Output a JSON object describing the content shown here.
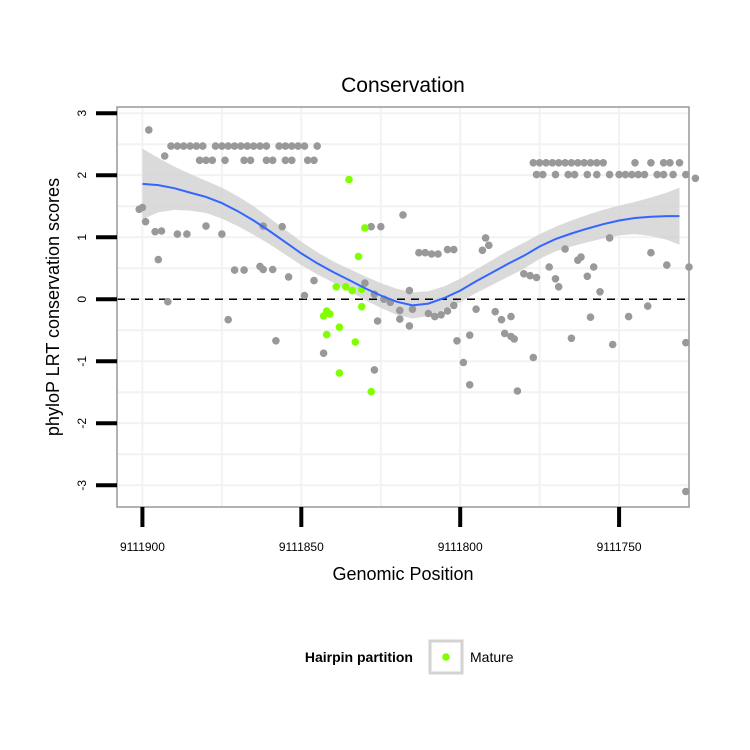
{
  "chart_data": {
    "type": "scatter",
    "title": "Conservation",
    "xlabel": "Genomic Position",
    "ylabel": "phyloP LRT conservation scores",
    "x_reversed": true,
    "xlim": [
      9111908,
      9111728
    ],
    "ylim": [
      -3.35,
      3.1
    ],
    "x_ticks": [
      "9111900",
      "9111850",
      "9111800",
      "9111750"
    ],
    "y_ticks": [
      "3",
      "2",
      "1",
      "0",
      "-1",
      "-2",
      "-3"
    ],
    "reference_line": {
      "y": 0,
      "style": "dashed"
    },
    "grid": true,
    "colors": {
      "other": "#999999",
      "mature": "#7fff00",
      "smooth": "#3366ff",
      "ribbon": "#d3d3d3",
      "panel": "#ffffff",
      "grid": "#f2f2f2",
      "frame": "#999999"
    },
    "legend": {
      "title": "Hairpin partition",
      "position": "bottom",
      "entries": [
        "Mature"
      ]
    },
    "series": [
      {
        "name": "Mature",
        "points": [
          [
            9111835,
            1.93
          ],
          [
            9111830,
            1.15
          ],
          [
            9111832,
            0.69
          ],
          [
            9111839,
            0.2
          ],
          [
            9111836,
            0.2
          ],
          [
            9111834,
            0.14
          ],
          [
            9111831,
            0.16
          ],
          [
            9111842,
            -0.19
          ],
          [
            9111841,
            -0.24
          ],
          [
            9111843,
            -0.27
          ],
          [
            9111838,
            -0.45
          ],
          [
            9111831,
            -0.12
          ],
          [
            9111842,
            -0.57
          ],
          [
            9111833,
            -0.69
          ],
          [
            9111838,
            -1.19
          ],
          [
            9111828,
            -1.49
          ]
        ]
      },
      {
        "name": "",
        "points": [
          [
            9111898,
            2.73
          ],
          [
            9111893,
            2.31
          ],
          [
            9111900,
            1.48
          ],
          [
            9111901,
            1.45
          ],
          [
            9111899,
            1.25
          ],
          [
            9111896,
            1.09
          ],
          [
            9111894,
            1.1
          ],
          [
            9111889,
            1.05
          ],
          [
            9111886,
            1.05
          ],
          [
            9111880,
            1.18
          ],
          [
            9111875,
            1.05
          ],
          [
            9111871,
            0.47
          ],
          [
            9111862,
            1.18
          ],
          [
            9111856,
            1.17
          ],
          [
            9111895,
            0.64
          ],
          [
            9111892,
            -0.04
          ],
          [
            9111873,
            -0.33
          ],
          [
            9111868,
            0.47
          ],
          [
            9111862,
            0.48
          ],
          [
            9111859,
            0.48
          ],
          [
            9111863,
            0.53
          ],
          [
            9111854,
            0.36
          ],
          [
            9111849,
            0.06
          ],
          [
            9111858,
            -0.67
          ],
          [
            9111846,
            0.3
          ],
          [
            9111843,
            -0.87
          ],
          [
            9111891,
            2.47
          ],
          [
            9111889,
            2.47
          ],
          [
            9111887,
            2.47
          ],
          [
            9111885,
            2.47
          ],
          [
            9111883,
            2.47
          ],
          [
            9111881,
            2.47
          ],
          [
            9111877,
            2.47
          ],
          [
            9111875,
            2.47
          ],
          [
            9111873,
            2.47
          ],
          [
            9111871,
            2.47
          ],
          [
            9111869,
            2.47
          ],
          [
            9111867,
            2.47
          ],
          [
            9111865,
            2.47
          ],
          [
            9111863,
            2.47
          ],
          [
            9111861,
            2.47
          ],
          [
            9111857,
            2.47
          ],
          [
            9111855,
            2.47
          ],
          [
            9111853,
            2.47
          ],
          [
            9111851,
            2.47
          ],
          [
            9111849,
            2.47
          ],
          [
            9111845,
            2.47
          ],
          [
            9111882,
            2.24
          ],
          [
            9111880,
            2.24
          ],
          [
            9111878,
            2.24
          ],
          [
            9111874,
            2.24
          ],
          [
            9111868,
            2.24
          ],
          [
            9111866,
            2.24
          ],
          [
            9111861,
            2.24
          ],
          [
            9111859,
            2.24
          ],
          [
            9111855,
            2.24
          ],
          [
            9111853,
            2.24
          ],
          [
            9111848,
            2.24
          ],
          [
            9111846,
            2.24
          ],
          [
            9111828,
            1.17
          ],
          [
            9111825,
            1.17
          ],
          [
            9111818,
            1.36
          ],
          [
            9111830,
            0.26
          ],
          [
            9111827,
            0.08
          ],
          [
            9111824,
            0.0
          ],
          [
            9111822,
            -0.05
          ],
          [
            9111826,
            -0.35
          ],
          [
            9111827,
            -1.14
          ],
          [
            9111819,
            -0.32
          ],
          [
            9111816,
            -0.43
          ],
          [
            9111819,
            -0.18
          ],
          [
            9111815,
            -0.16
          ],
          [
            9111816,
            0.14
          ],
          [
            9111813,
            0.75
          ],
          [
            9111811,
            0.75
          ],
          [
            9111809,
            0.73
          ],
          [
            9111807,
            0.73
          ],
          [
            9111804,
            0.8
          ],
          [
            9111802,
            0.8
          ],
          [
            9111810,
            -0.23
          ],
          [
            9111808,
            -0.28
          ],
          [
            9111806,
            -0.25
          ],
          [
            9111804,
            -0.19
          ],
          [
            9111802,
            -0.1
          ],
          [
            9111801,
            -0.67
          ],
          [
            9111799,
            -1.02
          ],
          [
            9111797,
            -1.38
          ],
          [
            9111797,
            -0.58
          ],
          [
            9111795,
            -0.16
          ],
          [
            9111793,
            0.79
          ],
          [
            9111792,
            0.99
          ],
          [
            9111791,
            0.87
          ],
          [
            9111789,
            -0.2
          ],
          [
            9111787,
            -0.33
          ],
          [
            9111786,
            -0.55
          ],
          [
            9111784,
            -0.28
          ],
          [
            9111784,
            -0.6
          ],
          [
            9111783,
            -0.64
          ],
          [
            9111782,
            -1.48
          ],
          [
            9111780,
            0.41
          ],
          [
            9111778,
            0.38
          ],
          [
            9111776,
            0.35
          ],
          [
            9111777,
            -0.94
          ],
          [
            9111777,
            2.2
          ],
          [
            9111775,
            2.2
          ],
          [
            9111773,
            2.2
          ],
          [
            9111771,
            2.2
          ],
          [
            9111769,
            2.2
          ],
          [
            9111767,
            2.2
          ],
          [
            9111765,
            2.2
          ],
          [
            9111763,
            2.2
          ],
          [
            9111761,
            2.2
          ],
          [
            9111759,
            2.2
          ],
          [
            9111757,
            2.2
          ],
          [
            9111755,
            2.2
          ],
          [
            9111745,
            2.2
          ],
          [
            9111740,
            2.2
          ],
          [
            9111736,
            2.2
          ],
          [
            9111734,
            2.2
          ],
          [
            9111731,
            2.2
          ],
          [
            9111776,
            2.01
          ],
          [
            9111774,
            2.01
          ],
          [
            9111770,
            2.01
          ],
          [
            9111766,
            2.01
          ],
          [
            9111764,
            2.01
          ],
          [
            9111760,
            2.01
          ],
          [
            9111757,
            2.01
          ],
          [
            9111753,
            2.01
          ],
          [
            9111750,
            2.01
          ],
          [
            9111748,
            2.01
          ],
          [
            9111746,
            2.01
          ],
          [
            9111744,
            2.01
          ],
          [
            9111742,
            2.01
          ],
          [
            9111738,
            2.01
          ],
          [
            9111736,
            2.01
          ],
          [
            9111733,
            2.01
          ],
          [
            9111729,
            2.01
          ],
          [
            9111726,
            1.95
          ],
          [
            9111767,
            0.81
          ],
          [
            9111753,
            0.99
          ],
          [
            9111762,
            0.68
          ],
          [
            9111740,
            0.75
          ],
          [
            9111763,
            0.63
          ],
          [
            9111735,
            0.55
          ],
          [
            9111772,
            0.52
          ],
          [
            9111758,
            0.52
          ],
          [
            9111760,
            0.37
          ],
          [
            9111770,
            0.33
          ],
          [
            9111769,
            0.2
          ],
          [
            9111756,
            0.12
          ],
          [
            9111741,
            -0.11
          ],
          [
            9111759,
            -0.29
          ],
          [
            9111747,
            -0.28
          ],
          [
            9111765,
            -0.63
          ],
          [
            9111752,
            -0.73
          ],
          [
            9111728,
            0.52
          ],
          [
            9111729,
            -0.7
          ],
          [
            9111729,
            -3.1
          ]
        ]
      }
    ],
    "smooth_line": [
      [
        9111900,
        1.86
      ],
      [
        9111895,
        1.84
      ],
      [
        9111890,
        1.79
      ],
      [
        9111885,
        1.72
      ],
      [
        9111880,
        1.65
      ],
      [
        9111875,
        1.55
      ],
      [
        9111870,
        1.42
      ],
      [
        9111865,
        1.27
      ],
      [
        9111860,
        1.1
      ],
      [
        9111855,
        0.92
      ],
      [
        9111850,
        0.74
      ],
      [
        9111845,
        0.58
      ],
      [
        9111840,
        0.44
      ],
      [
        9111835,
        0.31
      ],
      [
        9111830,
        0.18
      ],
      [
        9111825,
        0.06
      ],
      [
        9111820,
        -0.04
      ],
      [
        9111815,
        -0.1
      ],
      [
        9111810,
        -0.07
      ],
      [
        9111805,
        0.02
      ],
      [
        9111800,
        0.14
      ],
      [
        9111795,
        0.29
      ],
      [
        9111790,
        0.43
      ],
      [
        9111785,
        0.57
      ],
      [
        9111780,
        0.7
      ],
      [
        9111775,
        0.85
      ],
      [
        9111770,
        0.97
      ],
      [
        9111765,
        1.06
      ],
      [
        9111760,
        1.14
      ],
      [
        9111755,
        1.21
      ],
      [
        9111750,
        1.27
      ],
      [
        9111745,
        1.31
      ],
      [
        9111740,
        1.33
      ],
      [
        9111735,
        1.34
      ],
      [
        9111731,
        1.34
      ]
    ],
    "ribbon_upper": [
      [
        9111900,
        2.43
      ],
      [
        9111895,
        2.28
      ],
      [
        9111890,
        2.14
      ],
      [
        9111885,
        2.02
      ],
      [
        9111880,
        1.91
      ],
      [
        9111875,
        1.8
      ],
      [
        9111870,
        1.66
      ],
      [
        9111865,
        1.5
      ],
      [
        9111860,
        1.31
      ],
      [
        9111855,
        1.12
      ],
      [
        9111850,
        0.93
      ],
      [
        9111845,
        0.76
      ],
      [
        9111840,
        0.61
      ],
      [
        9111835,
        0.49
      ],
      [
        9111830,
        0.37
      ],
      [
        9111825,
        0.26
      ],
      [
        9111820,
        0.17
      ],
      [
        9111815,
        0.11
      ],
      [
        9111810,
        0.13
      ],
      [
        9111805,
        0.21
      ],
      [
        9111800,
        0.33
      ],
      [
        9111795,
        0.48
      ],
      [
        9111790,
        0.63
      ],
      [
        9111785,
        0.78
      ],
      [
        9111780,
        0.91
      ],
      [
        9111775,
        1.05
      ],
      [
        9111770,
        1.17
      ],
      [
        9111765,
        1.27
      ],
      [
        9111760,
        1.36
      ],
      [
        9111755,
        1.44
      ],
      [
        9111750,
        1.51
      ],
      [
        9111745,
        1.57
      ],
      [
        9111740,
        1.64
      ],
      [
        9111735,
        1.72
      ],
      [
        9111731,
        1.8
      ]
    ],
    "ribbon_lower": [
      [
        9111900,
        1.29
      ],
      [
        9111895,
        1.4
      ],
      [
        9111890,
        1.44
      ],
      [
        9111885,
        1.43
      ],
      [
        9111880,
        1.39
      ],
      [
        9111875,
        1.3
      ],
      [
        9111870,
        1.18
      ],
      [
        9111865,
        1.04
      ],
      [
        9111860,
        0.89
      ],
      [
        9111855,
        0.72
      ],
      [
        9111850,
        0.55
      ],
      [
        9111845,
        0.4
      ],
      [
        9111840,
        0.27
      ],
      [
        9111835,
        0.13
      ],
      [
        9111830,
        -0.01
      ],
      [
        9111825,
        -0.14
      ],
      [
        9111820,
        -0.25
      ],
      [
        9111815,
        -0.31
      ],
      [
        9111810,
        -0.27
      ],
      [
        9111805,
        -0.17
      ],
      [
        9111800,
        -0.05
      ],
      [
        9111795,
        0.1
      ],
      [
        9111790,
        0.23
      ],
      [
        9111785,
        0.36
      ],
      [
        9111780,
        0.49
      ],
      [
        9111775,
        0.65
      ],
      [
        9111770,
        0.77
      ],
      [
        9111765,
        0.85
      ],
      [
        9111760,
        0.92
      ],
      [
        9111755,
        0.98
      ],
      [
        9111750,
        1.03
      ],
      [
        9111745,
        1.05
      ],
      [
        9111740,
        1.02
      ],
      [
        9111735,
        0.96
      ],
      [
        9111731,
        0.88
      ]
    ]
  }
}
